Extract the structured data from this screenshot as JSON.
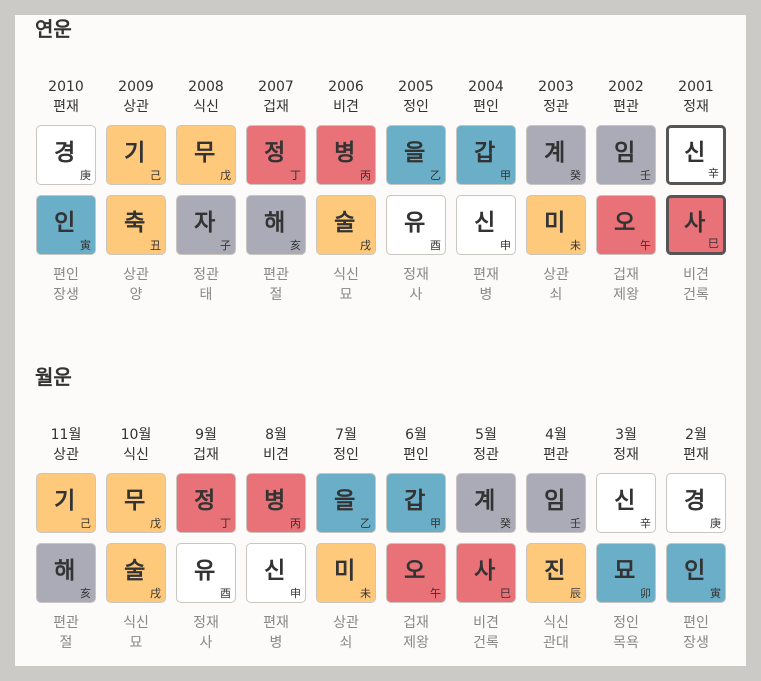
{
  "sections": [
    {
      "title": "연운",
      "columns": [
        {
          "label": "2010",
          "rel": "편재",
          "stem": {
            "k": "경",
            "h": "庚",
            "c": "white"
          },
          "branch": {
            "k": "인",
            "h": "寅",
            "c": "blue"
          },
          "f1": "편인",
          "f2": "장생"
        },
        {
          "label": "2009",
          "rel": "상관",
          "stem": {
            "k": "기",
            "h": "己",
            "c": "yellow"
          },
          "branch": {
            "k": "축",
            "h": "丑",
            "c": "yellow"
          },
          "f1": "상관",
          "f2": "양"
        },
        {
          "label": "2008",
          "rel": "식신",
          "stem": {
            "k": "무",
            "h": "戊",
            "c": "yellow"
          },
          "branch": {
            "k": "자",
            "h": "子",
            "c": "gray"
          },
          "f1": "정관",
          "f2": "태"
        },
        {
          "label": "2007",
          "rel": "겁재",
          "stem": {
            "k": "정",
            "h": "丁",
            "c": "red"
          },
          "branch": {
            "k": "해",
            "h": "亥",
            "c": "gray"
          },
          "f1": "편관",
          "f2": "절"
        },
        {
          "label": "2006",
          "rel": "비견",
          "stem": {
            "k": "병",
            "h": "丙",
            "c": "red"
          },
          "branch": {
            "k": "술",
            "h": "戌",
            "c": "yellow"
          },
          "f1": "식신",
          "f2": "묘"
        },
        {
          "label": "2005",
          "rel": "정인",
          "stem": {
            "k": "을",
            "h": "乙",
            "c": "blue"
          },
          "branch": {
            "k": "유",
            "h": "酉",
            "c": "white"
          },
          "f1": "정재",
          "f2": "사"
        },
        {
          "label": "2004",
          "rel": "편인",
          "stem": {
            "k": "갑",
            "h": "甲",
            "c": "blue"
          },
          "branch": {
            "k": "신",
            "h": "申",
            "c": "white"
          },
          "f1": "편재",
          "f2": "병"
        },
        {
          "label": "2003",
          "rel": "정관",
          "stem": {
            "k": "계",
            "h": "癸",
            "c": "gray"
          },
          "branch": {
            "k": "미",
            "h": "未",
            "c": "yellow"
          },
          "f1": "상관",
          "f2": "쇠"
        },
        {
          "label": "2002",
          "rel": "편관",
          "stem": {
            "k": "임",
            "h": "壬",
            "c": "gray"
          },
          "branch": {
            "k": "오",
            "h": "午",
            "c": "red"
          },
          "f1": "겁재",
          "f2": "제왕"
        },
        {
          "label": "2001",
          "rel": "정재",
          "stem": {
            "k": "신",
            "h": "辛",
            "c": "white",
            "sel": true
          },
          "branch": {
            "k": "사",
            "h": "巳",
            "c": "red",
            "sel": true
          },
          "f1": "비견",
          "f2": "건록"
        }
      ]
    },
    {
      "title": "월운",
      "columns": [
        {
          "label": "11월",
          "rel": "상관",
          "stem": {
            "k": "기",
            "h": "己",
            "c": "yellow"
          },
          "branch": {
            "k": "해",
            "h": "亥",
            "c": "gray"
          },
          "f1": "편관",
          "f2": "절"
        },
        {
          "label": "10월",
          "rel": "식신",
          "stem": {
            "k": "무",
            "h": "戊",
            "c": "yellow"
          },
          "branch": {
            "k": "술",
            "h": "戌",
            "c": "yellow"
          },
          "f1": "식신",
          "f2": "묘"
        },
        {
          "label": "9월",
          "rel": "겁재",
          "stem": {
            "k": "정",
            "h": "丁",
            "c": "red"
          },
          "branch": {
            "k": "유",
            "h": "酉",
            "c": "white"
          },
          "f1": "정재",
          "f2": "사"
        },
        {
          "label": "8월",
          "rel": "비견",
          "stem": {
            "k": "병",
            "h": "丙",
            "c": "red"
          },
          "branch": {
            "k": "신",
            "h": "申",
            "c": "white"
          },
          "f1": "편재",
          "f2": "병"
        },
        {
          "label": "7월",
          "rel": "정인",
          "stem": {
            "k": "을",
            "h": "乙",
            "c": "blue"
          },
          "branch": {
            "k": "미",
            "h": "未",
            "c": "yellow"
          },
          "f1": "상관",
          "f2": "쇠"
        },
        {
          "label": "6월",
          "rel": "편인",
          "stem": {
            "k": "갑",
            "h": "甲",
            "c": "blue"
          },
          "branch": {
            "k": "오",
            "h": "午",
            "c": "red"
          },
          "f1": "겁재",
          "f2": "제왕"
        },
        {
          "label": "5월",
          "rel": "정관",
          "stem": {
            "k": "계",
            "h": "癸",
            "c": "gray"
          },
          "branch": {
            "k": "사",
            "h": "巳",
            "c": "red"
          },
          "f1": "비견",
          "f2": "건록"
        },
        {
          "label": "4월",
          "rel": "편관",
          "stem": {
            "k": "임",
            "h": "壬",
            "c": "gray"
          },
          "branch": {
            "k": "진",
            "h": "辰",
            "c": "yellow"
          },
          "f1": "식신",
          "f2": "관대"
        },
        {
          "label": "3월",
          "rel": "정재",
          "stem": {
            "k": "신",
            "h": "辛",
            "c": "white"
          },
          "branch": {
            "k": "묘",
            "h": "卯",
            "c": "blue"
          },
          "f1": "정인",
          "f2": "목욕"
        },
        {
          "label": "2월",
          "rel": "편재",
          "stem": {
            "k": "경",
            "h": "庚",
            "c": "white"
          },
          "branch": {
            "k": "인",
            "h": "寅",
            "c": "blue"
          },
          "f1": "편인",
          "f2": "장생"
        }
      ]
    }
  ]
}
